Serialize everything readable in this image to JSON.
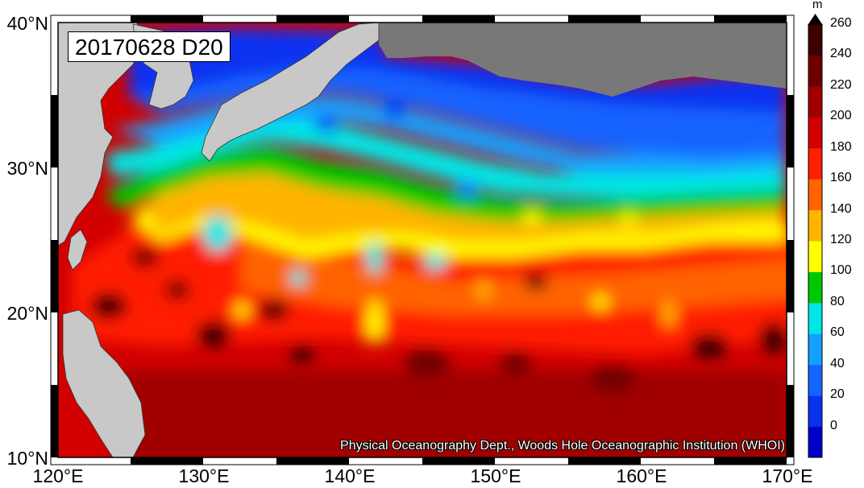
{
  "map": {
    "date_label": "20170628 D20",
    "credit": "Physical Oceanography Dept., Woods Hole Oceanographic Institution (WHOI)",
    "lat_labels": [
      "40°N",
      "30°N",
      "20°N",
      "10°N"
    ],
    "lon_labels": [
      "120°E",
      "130°E",
      "140°E",
      "150°E",
      "160°E",
      "170°E"
    ],
    "lon_range": [
      120,
      170
    ],
    "lat_range": [
      10,
      40
    ]
  },
  "colorbar": {
    "unit": "m",
    "labels": [
      "260",
      "240",
      "220",
      "200",
      "180",
      "160",
      "140",
      "120",
      "100",
      "80",
      "60",
      "40",
      "20",
      "0"
    ],
    "colors": [
      "#0000c8",
      "#0a32f0",
      "#1464ff",
      "#14a0ff",
      "#00e6e6",
      "#00c800",
      "#ffff00",
      "#ffb400",
      "#ff6400",
      "#ff1e00",
      "#d20000",
      "#a00000",
      "#6e0000",
      "#3c0000"
    ],
    "land_color": "#c8c8c8",
    "mask_color": "#787878"
  }
}
